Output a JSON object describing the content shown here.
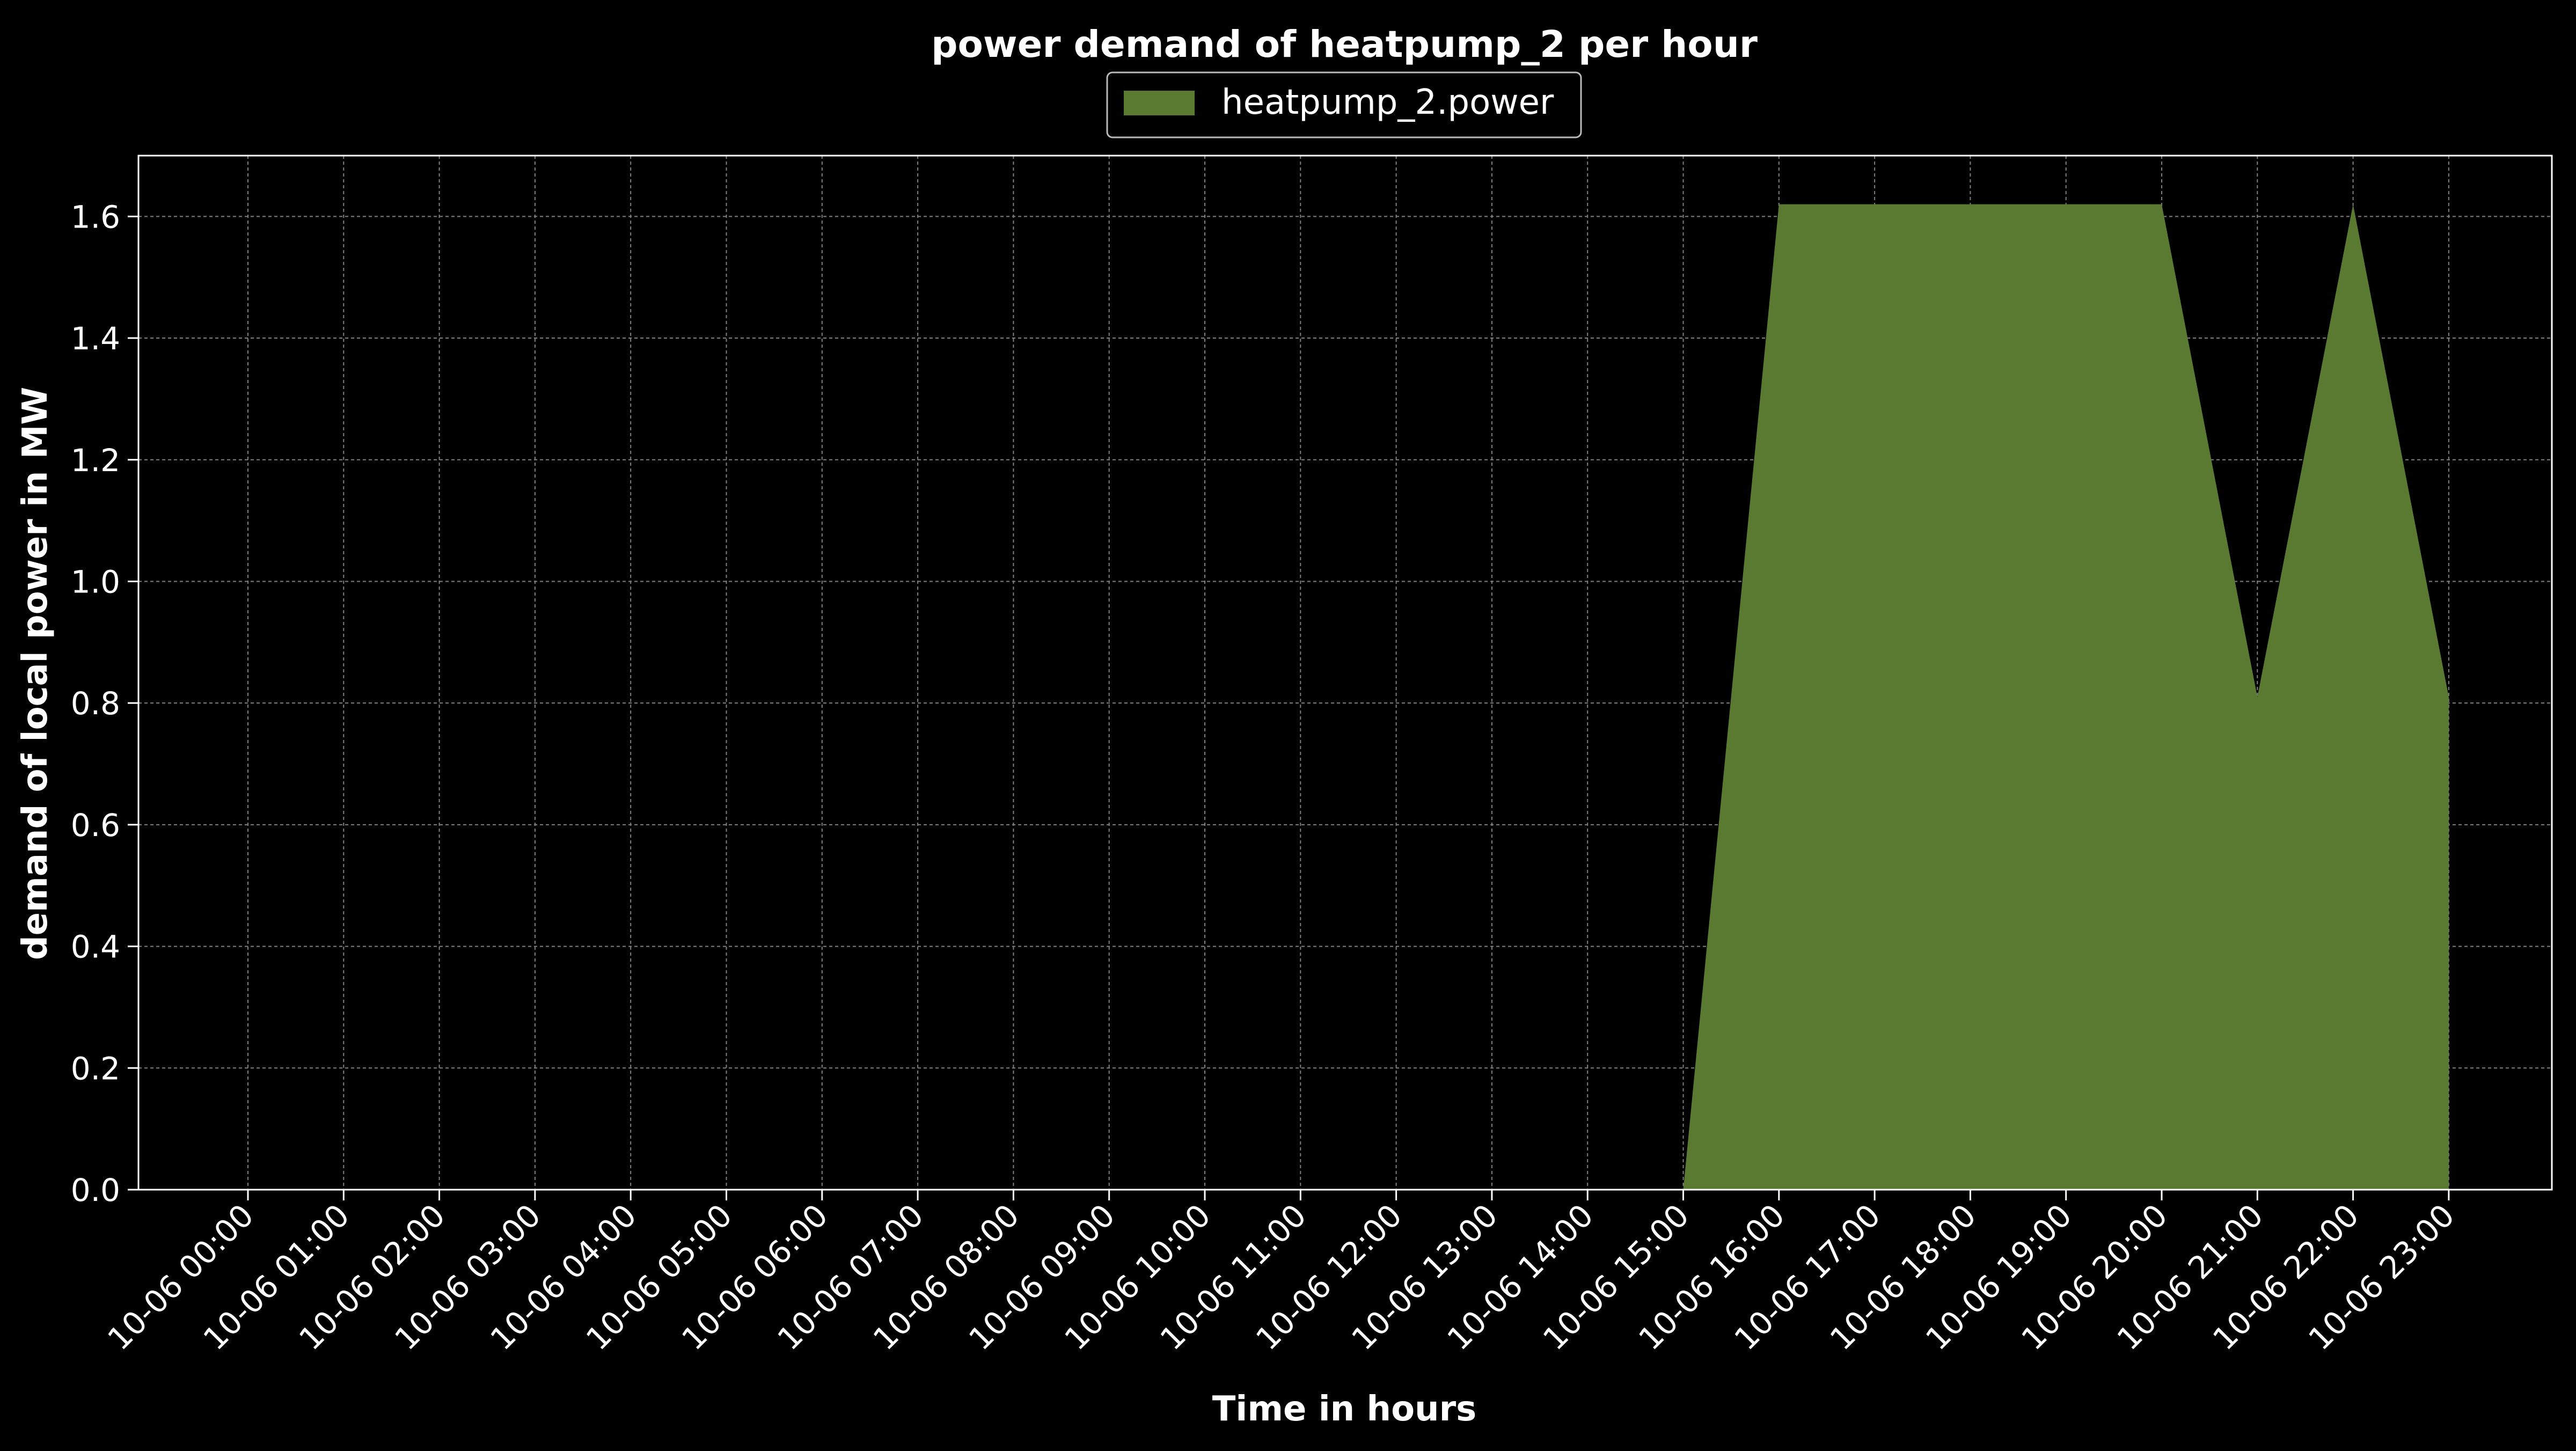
{
  "chart_data": {
    "type": "area",
    "title": "power demand of heatpump_2 per hour",
    "xlabel": "Time in hours",
    "ylabel": "demand of local power in MW",
    "x": [
      "10-06 00:00",
      "10-06 01:00",
      "10-06 02:00",
      "10-06 03:00",
      "10-06 04:00",
      "10-06 05:00",
      "10-06 06:00",
      "10-06 07:00",
      "10-06 08:00",
      "10-06 09:00",
      "10-06 10:00",
      "10-06 11:00",
      "10-06 12:00",
      "10-06 13:00",
      "10-06 14:00",
      "10-06 15:00",
      "10-06 16:00",
      "10-06 17:00",
      "10-06 18:00",
      "10-06 19:00",
      "10-06 20:00",
      "10-06 21:00",
      "10-06 22:00",
      "10-06 23:00"
    ],
    "series": [
      {
        "name": "heatpump_2.power",
        "color": "#5a7a32",
        "values": [
          0,
          0,
          0,
          0,
          0,
          0,
          0,
          0,
          0,
          0,
          0,
          0,
          0,
          0,
          0,
          0,
          1.62,
          1.62,
          1.62,
          1.62,
          1.62,
          0.81,
          1.62,
          0.81
        ]
      }
    ],
    "ylim": [
      0,
      1.7
    ],
    "yticks": [
      "0.0",
      "0.2",
      "0.4",
      "0.6",
      "0.8",
      "1.0",
      "1.2",
      "1.4",
      "1.6"
    ],
    "grid": true,
    "legend_position": "top-center",
    "background": "#000000",
    "foreground": "#ffffff"
  }
}
